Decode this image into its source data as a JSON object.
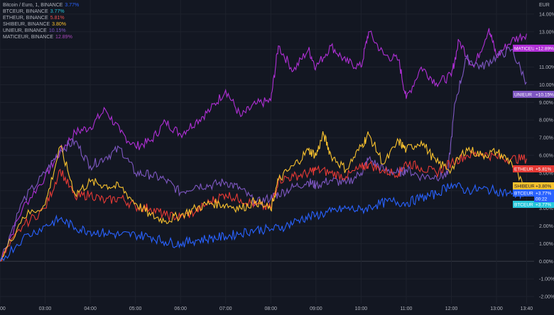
{
  "chart_data": {
    "type": "line",
    "title": "",
    "xlabel": "",
    "ylabel": "",
    "y_unit": "EUR",
    "ylim": [
      -2.4,
      14.8
    ],
    "xlim": [
      "02:00",
      "13:50"
    ],
    "y_ticks": [
      {
        "value": 14.0,
        "label": "14.00%"
      },
      {
        "value": 13.0,
        "label": "13.00%"
      },
      {
        "value": 12.0,
        "label": "12.00%"
      },
      {
        "value": 11.0,
        "label": "11.00%"
      },
      {
        "value": 10.0,
        "label": "10.00%"
      },
      {
        "value": 9.0,
        "label": "9.00%"
      },
      {
        "value": 8.0,
        "label": "8.00%"
      },
      {
        "value": 7.0,
        "label": "7.00%"
      },
      {
        "value": 6.0,
        "label": "6.00%"
      },
      {
        "value": 5.0,
        "label": "5.00%"
      },
      {
        "value": 4.0,
        "label": "4.00%"
      },
      {
        "value": 3.0,
        "label": "3.00%"
      },
      {
        "value": 2.0,
        "label": "2.00%"
      },
      {
        "value": 1.0,
        "label": "1.00%"
      },
      {
        "value": 0.0,
        "label": "0.00%"
      },
      {
        "value": -1.0,
        "label": "-1.00%"
      },
      {
        "value": -2.0,
        "label": "-2.00%"
      }
    ],
    "x_ticks": [
      "00",
      "03:00",
      "04:00",
      "05:00",
      "06:00",
      "07:00",
      "08:00",
      "09:00",
      "10:00",
      "11:00",
      "12:00",
      "13:00",
      "13:40"
    ],
    "grid": true,
    "legend_position": "top-left",
    "legend": [
      {
        "name": "Bitcoin / Euro, 1, BINANCE",
        "value": "3.77%",
        "color": "#2962ff"
      },
      {
        "name": "BTCEUR, BINANCE",
        "value": "3.77%",
        "color": "#26c6da"
      },
      {
        "name": "ETHEUR, BINANCE",
        "value": "5.81%",
        "color": "#ef5350"
      },
      {
        "name": "SHIBEUR, BINANCE",
        "value": "3.80%",
        "color": "#fbc02d"
      },
      {
        "name": "UNIEUR, BINANCE",
        "value": "10.15%",
        "color": "#7e57c2"
      },
      {
        "name": "MATICEUR, BINANCE",
        "value": "12.89%",
        "color": "#ab47bc"
      }
    ],
    "series": [
      {
        "name": "MATICEUR",
        "color": "#b02fd6",
        "label": "MATICEUR",
        "value_label": "+12.89%",
        "x": [
          "02:00",
          "02:30",
          "03:00",
          "03:20",
          "03:40",
          "04:00",
          "04:20",
          "04:40",
          "05:00",
          "05:20",
          "05:40",
          "06:00",
          "06:20",
          "06:40",
          "07:00",
          "07:20",
          "07:40",
          "08:00",
          "08:10",
          "08:30",
          "08:50",
          "09:00",
          "09:20",
          "09:40",
          "10:00",
          "10:10",
          "10:30",
          "10:50",
          "11:00",
          "11:20",
          "11:40",
          "12:00",
          "12:10",
          "12:30",
          "12:50",
          "13:00",
          "13:20",
          "13:40"
        ],
        "y": [
          0.0,
          3.0,
          4.8,
          6.2,
          7.3,
          7.6,
          8.6,
          7.3,
          6.5,
          6.8,
          7.9,
          7.2,
          7.9,
          8.6,
          9.7,
          8.2,
          8.9,
          9.1,
          12.2,
          10.8,
          12.0,
          11.0,
          12.2,
          11.3,
          11.0,
          13.0,
          11.7,
          11.4,
          9.2,
          11.0,
          10.1,
          10.5,
          12.5,
          11.0,
          13.2,
          11.6,
          12.5,
          12.89
        ]
      },
      {
        "name": "UNIEUR",
        "color": "#7e57c2",
        "label": "UNIEUR",
        "value_label": "+10.15%",
        "x": [
          "02:00",
          "02:30",
          "03:00",
          "03:20",
          "03:40",
          "04:00",
          "04:20",
          "04:40",
          "05:00",
          "05:20",
          "05:40",
          "06:00",
          "06:20",
          "06:40",
          "07:00",
          "07:20",
          "07:40",
          "08:00",
          "08:10",
          "08:30",
          "08:50",
          "09:00",
          "09:20",
          "09:40",
          "10:00",
          "10:10",
          "10:30",
          "10:50",
          "11:00",
          "11:20",
          "11:40",
          "11:55",
          "12:05",
          "12:20",
          "12:40",
          "13:00",
          "13:20",
          "13:40"
        ],
        "y": [
          0.0,
          3.4,
          5.0,
          6.3,
          6.8,
          5.4,
          5.9,
          6.4,
          5.0,
          4.9,
          4.6,
          3.9,
          4.3,
          4.3,
          4.5,
          4.1,
          3.3,
          3.6,
          3.8,
          4.2,
          4.5,
          4.3,
          4.6,
          4.4,
          5.0,
          5.8,
          5.2,
          5.0,
          5.2,
          4.8,
          4.8,
          4.9,
          9.0,
          11.5,
          11.0,
          11.6,
          12.0,
          10.15
        ]
      },
      {
        "name": "ETHEUR",
        "color": "#e53935",
        "label": "ETHEUR",
        "value_label": "+5.81%",
        "x": [
          "02:00",
          "02:30",
          "03:00",
          "03:20",
          "03:40",
          "04:00",
          "04:20",
          "04:40",
          "05:00",
          "05:20",
          "05:40",
          "06:00",
          "06:20",
          "06:40",
          "07:00",
          "07:20",
          "07:40",
          "08:00",
          "08:10",
          "08:30",
          "08:50",
          "09:00",
          "09:20",
          "09:40",
          "10:00",
          "10:10",
          "10:30",
          "10:50",
          "11:00",
          "11:20",
          "11:40",
          "12:00",
          "12:20",
          "12:40",
          "13:00",
          "13:20",
          "13:40"
        ],
        "y": [
          0.0,
          2.0,
          3.0,
          5.2,
          3.6,
          3.8,
          3.4,
          3.6,
          3.1,
          3.0,
          2.6,
          2.5,
          2.8,
          3.4,
          3.8,
          3.5,
          3.2,
          3.0,
          4.6,
          4.8,
          5.0,
          5.2,
          5.0,
          4.8,
          5.3,
          5.5,
          5.1,
          5.0,
          5.6,
          5.3,
          5.0,
          5.6,
          6.0,
          6.1,
          5.9,
          5.8,
          5.81
        ]
      },
      {
        "name": "SHIBEUR",
        "color": "#f9c22e",
        "label": "SHIBEUR",
        "value_label": "+3.80%",
        "x": [
          "02:00",
          "02:30",
          "03:00",
          "03:20",
          "03:40",
          "04:00",
          "04:20",
          "04:40",
          "05:00",
          "05:20",
          "05:40",
          "06:00",
          "06:20",
          "06:40",
          "07:00",
          "07:20",
          "07:40",
          "08:00",
          "08:10",
          "08:30",
          "08:50",
          "09:00",
          "09:10",
          "09:20",
          "09:40",
          "10:00",
          "10:10",
          "10:30",
          "10:50",
          "11:00",
          "11:20",
          "11:40",
          "12:00",
          "12:20",
          "12:40",
          "13:00",
          "13:20",
          "13:40"
        ],
        "y": [
          0.0,
          2.5,
          3.2,
          6.5,
          3.8,
          4.5,
          4.3,
          4.2,
          3.3,
          2.6,
          2.3,
          2.6,
          3.0,
          3.3,
          3.2,
          3.0,
          3.4,
          2.9,
          4.6,
          5.4,
          6.3,
          6.0,
          7.2,
          6.0,
          5.2,
          6.5,
          7.2,
          5.5,
          6.8,
          6.3,
          6.8,
          5.6,
          5.2,
          6.4,
          6.0,
          6.2,
          5.6,
          3.8
        ]
      },
      {
        "name": "BTCEUR",
        "color": "#2962ff",
        "label": "BTCEUR",
        "value_label": "+3.77%",
        "x": [
          "02:00",
          "02:30",
          "03:00",
          "03:20",
          "03:40",
          "04:00",
          "04:20",
          "04:40",
          "05:00",
          "05:20",
          "05:40",
          "06:00",
          "06:20",
          "06:40",
          "07:00",
          "07:20",
          "07:40",
          "08:00",
          "08:20",
          "08:40",
          "09:00",
          "09:20",
          "09:40",
          "10:00",
          "10:20",
          "10:40",
          "11:00",
          "11:20",
          "11:40",
          "12:00",
          "12:20",
          "12:40",
          "13:00",
          "13:20",
          "13:40"
        ],
        "y": [
          0.0,
          1.3,
          2.0,
          2.4,
          1.9,
          1.7,
          1.6,
          1.5,
          1.5,
          1.4,
          1.1,
          1.0,
          1.2,
          1.3,
          1.4,
          1.6,
          1.8,
          1.8,
          2.0,
          2.4,
          2.6,
          2.8,
          3.0,
          2.9,
          3.2,
          3.4,
          3.3,
          3.6,
          3.8,
          4.4,
          4.0,
          4.1,
          4.0,
          3.8,
          3.77
        ]
      }
    ],
    "extra_labels": [
      {
        "label": "BTCEUR",
        "value_label": "+3.77%",
        "color": "#26c6da"
      },
      {
        "label": "00:22",
        "color": "#2962ff"
      }
    ]
  }
}
